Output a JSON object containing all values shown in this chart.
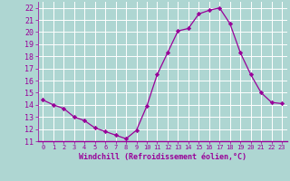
{
  "x": [
    0,
    1,
    2,
    3,
    4,
    5,
    6,
    7,
    8,
    9,
    10,
    11,
    12,
    13,
    14,
    15,
    16,
    17,
    18,
    19,
    20,
    21,
    22,
    23
  ],
  "y": [
    14.4,
    14.0,
    13.7,
    13.0,
    12.7,
    12.1,
    11.8,
    11.5,
    11.2,
    11.9,
    13.9,
    16.5,
    18.3,
    20.1,
    20.3,
    21.5,
    21.8,
    22.0,
    20.7,
    18.3,
    16.5,
    15.0,
    14.2,
    14.1
  ],
  "line_color": "#990099",
  "marker": "D",
  "marker_size": 2.2,
  "bg_color": "#aed6d2",
  "grid_color": "#ffffff",
  "xlabel": "Windchill (Refroidissement éolien,°C)",
  "xlabel_color": "#990099",
  "ylabel_color": "#990099",
  "tick_color": "#990099",
  "ylim": [
    11,
    22.5
  ],
  "xlim": [
    -0.5,
    23.5
  ],
  "yticks": [
    11,
    12,
    13,
    14,
    15,
    16,
    17,
    18,
    19,
    20,
    21,
    22
  ],
  "xticks": [
    0,
    1,
    2,
    3,
    4,
    5,
    6,
    7,
    8,
    9,
    10,
    11,
    12,
    13,
    14,
    15,
    16,
    17,
    18,
    19,
    20,
    21,
    22,
    23
  ],
  "xtick_labels": [
    "0",
    "1",
    "2",
    "3",
    "4",
    "5",
    "6",
    "7",
    "8",
    "9",
    "10",
    "11",
    "12",
    "13",
    "14",
    "15",
    "16",
    "17",
    "18",
    "19",
    "20",
    "21",
    "22",
    "23"
  ]
}
